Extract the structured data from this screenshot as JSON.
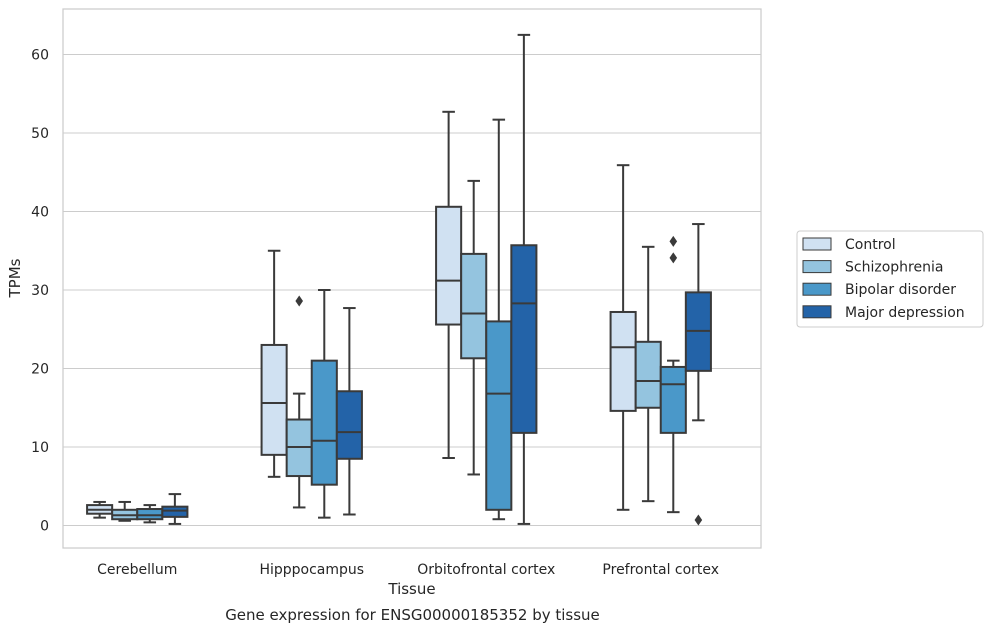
{
  "chart_data": {
    "type": "box",
    "xlabel": "Tissue",
    "ylabel": "TPMs",
    "ylim": [
      -2.8,
      65.5
    ],
    "yticks": [
      0,
      10,
      20,
      30,
      40,
      50,
      60
    ],
    "grid": "horizontal",
    "legend_position": "center-right",
    "categories": [
      "Cerebellum",
      "Hipppocampus",
      "Orbitofrontal cortex",
      "Prefrontal cortex"
    ],
    "series": [
      {
        "name": "Control",
        "color": "#d0e1f2",
        "boxes": [
          {
            "whislo": 1.0,
            "q1": 1.5,
            "med": 2.0,
            "q3": 2.6,
            "whishi": 3.0,
            "fliers": []
          },
          {
            "whislo": 6.2,
            "q1": 9.0,
            "med": 15.6,
            "q3": 23.0,
            "whishi": 35.0,
            "fliers": []
          },
          {
            "whislo": 8.6,
            "q1": 25.6,
            "med": 31.2,
            "q3": 40.6,
            "whishi": 52.7,
            "fliers": []
          },
          {
            "whislo": 2.0,
            "q1": 14.6,
            "med": 22.7,
            "q3": 27.2,
            "whishi": 45.9,
            "fliers": []
          }
        ]
      },
      {
        "name": "Schizophrenia",
        "color": "#94c4df",
        "boxes": [
          {
            "whislo": 0.6,
            "q1": 0.8,
            "med": 1.3,
            "q3": 2.0,
            "whishi": 3.0,
            "fliers": []
          },
          {
            "whislo": 2.3,
            "q1": 6.3,
            "med": 10.0,
            "q3": 13.5,
            "whishi": 16.8,
            "fliers": [
              28.6
            ]
          },
          {
            "whislo": 6.5,
            "q1": 21.3,
            "med": 27.0,
            "q3": 34.6,
            "whishi": 43.9,
            "fliers": []
          },
          {
            "whislo": 3.1,
            "q1": 15.0,
            "med": 18.4,
            "q3": 23.4,
            "whishi": 35.5,
            "fliers": []
          }
        ]
      },
      {
        "name": "Bipolar disorder",
        "color": "#4a98c9",
        "boxes": [
          {
            "whislo": 0.4,
            "q1": 0.8,
            "med": 1.3,
            "q3": 2.1,
            "whishi": 2.6,
            "fliers": []
          },
          {
            "whislo": 1.0,
            "q1": 5.2,
            "med": 10.8,
            "q3": 21.0,
            "whishi": 30.0,
            "fliers": []
          },
          {
            "whislo": 0.8,
            "q1": 2.0,
            "med": 16.8,
            "q3": 26.0,
            "whishi": 51.7,
            "fliers": []
          },
          {
            "whislo": 1.7,
            "q1": 11.8,
            "med": 18.0,
            "q3": 20.2,
            "whishi": 21.0,
            "fliers": [
              34.1,
              36.2
            ]
          }
        ]
      },
      {
        "name": "Major depression",
        "color": "#2363a8",
        "boxes": [
          {
            "whislo": 0.2,
            "q1": 1.1,
            "med": 1.9,
            "q3": 2.4,
            "whishi": 4.0,
            "fliers": []
          },
          {
            "whislo": 1.4,
            "q1": 8.5,
            "med": 11.9,
            "q3": 17.1,
            "whishi": 27.7,
            "fliers": []
          },
          {
            "whislo": 0.2,
            "q1": 11.8,
            "med": 28.3,
            "q3": 35.7,
            "whishi": 62.5,
            "fliers": []
          },
          {
            "whislo": 13.4,
            "q1": 19.7,
            "med": 24.8,
            "q3": 29.7,
            "whishi": 38.4,
            "fliers": [
              0.7
            ]
          }
        ]
      }
    ]
  },
  "caption": "Gene expression for ENSG00000185352 by tissue"
}
